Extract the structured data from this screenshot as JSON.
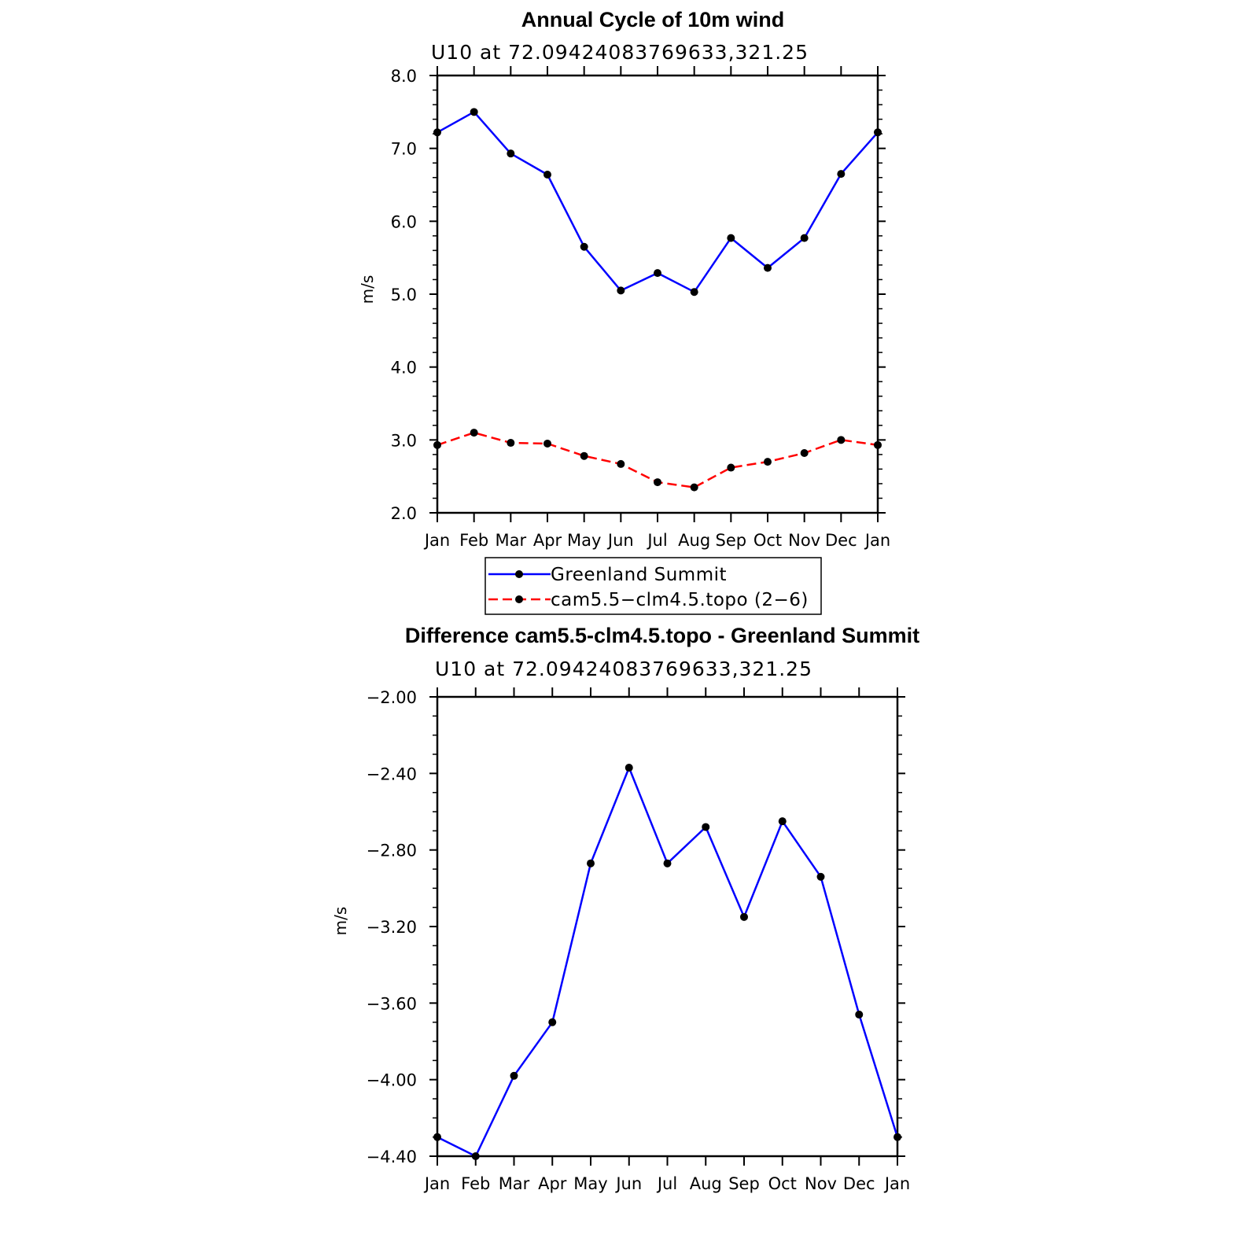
{
  "chart_data": [
    {
      "type": "line",
      "title": "Annual Cycle of 10m wind",
      "subtitle": "U10 at 72.09424083769633,321.25",
      "xlabel": "",
      "ylabel": "m/s",
      "categories": [
        "Jan",
        "Feb",
        "Mar",
        "Apr",
        "May",
        "Jun",
        "Jul",
        "Aug",
        "Sep",
        "Oct",
        "Nov",
        "Dec",
        "Jan"
      ],
      "ylim": [
        2.0,
        8.0
      ],
      "yticks": [
        2.0,
        3.0,
        4.0,
        5.0,
        6.0,
        7.0,
        8.0
      ],
      "ytick_labels": [
        "2.0",
        "3.0",
        "4.0",
        "5.0",
        "6.0",
        "7.0",
        "8.0"
      ],
      "series": [
        {
          "name": "Greenland Summit",
          "color": "#0000ff",
          "dash": "solid",
          "values": [
            7.22,
            7.5,
            6.93,
            6.64,
            5.65,
            5.05,
            5.29,
            5.03,
            5.77,
            5.36,
            5.77,
            6.65,
            7.22
          ]
        },
        {
          "name": "cam5.5-clm4.5.topo (2-6)",
          "color": "#ff0000",
          "dash": "dashed",
          "values": [
            2.93,
            3.1,
            2.96,
            2.95,
            2.78,
            2.67,
            2.42,
            2.35,
            2.62,
            2.7,
            2.82,
            3.0,
            2.93
          ]
        }
      ],
      "legend": {
        "position": "bottom-center",
        "entries": [
          "Greenland Summit",
          "cam5.5−clm4.5.topo (2−6)"
        ]
      }
    },
    {
      "type": "line",
      "title": "Difference cam5.5-clm4.5.topo - Greenland Summit",
      "subtitle": "U10 at 72.09424083769633,321.25",
      "xlabel": "",
      "ylabel": "m/s",
      "categories": [
        "Jan",
        "Feb",
        "Mar",
        "Apr",
        "May",
        "Jun",
        "Jul",
        "Aug",
        "Sep",
        "Oct",
        "Nov",
        "Dec",
        "Jan"
      ],
      "ylim": [
        -4.4,
        -2.0
      ],
      "yticks": [
        -4.4,
        -4.0,
        -3.6,
        -3.2,
        -2.8,
        -2.4,
        -2.0
      ],
      "ytick_labels": [
        "−4.40",
        "−4.00",
        "−3.60",
        "−3.20",
        "−2.80",
        "−2.40",
        "−2.00"
      ],
      "series": [
        {
          "name": "Difference",
          "color": "#0000ff",
          "dash": "solid",
          "values": [
            -4.3,
            -4.4,
            -3.98,
            -3.7,
            -2.87,
            -2.37,
            -2.87,
            -2.68,
            -3.15,
            -2.65,
            -2.94,
            -3.66,
            -4.3
          ]
        }
      ]
    }
  ]
}
